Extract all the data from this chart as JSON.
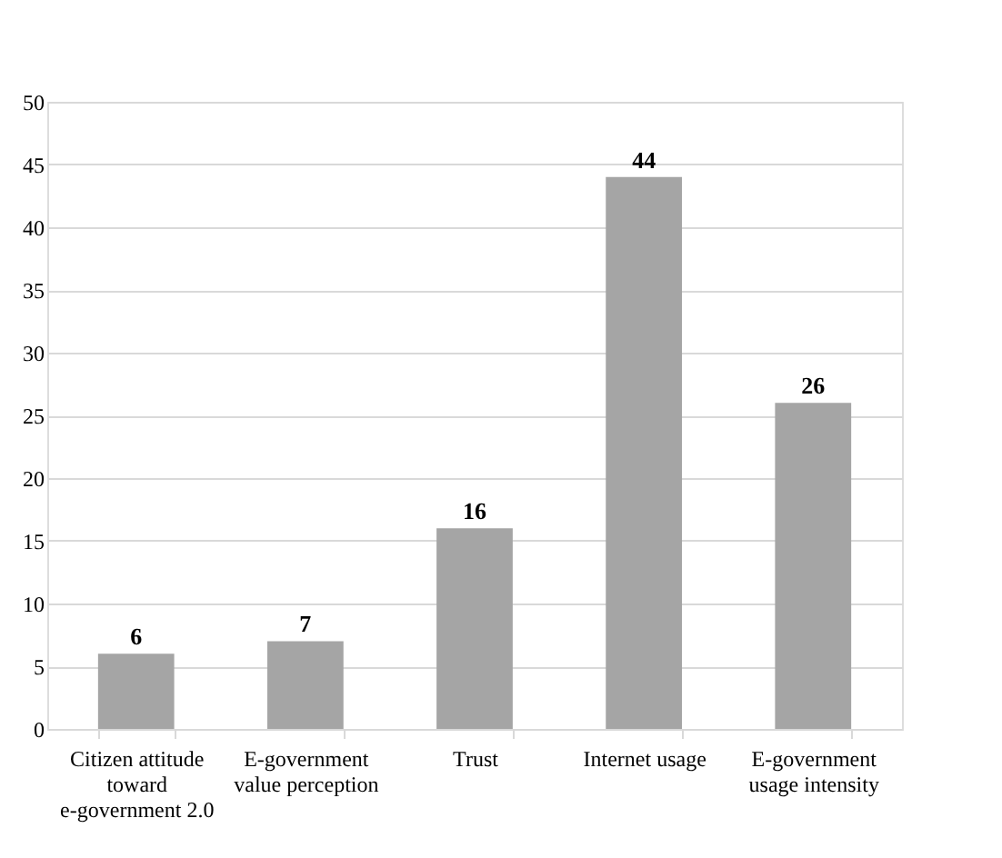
{
  "chart_data": {
    "type": "bar",
    "categories": [
      "Citizen attitude toward e-government 2.0",
      "E-government value perception",
      "Trust",
      "Internet usage",
      "E-government usage intensity"
    ],
    "values": [
      6,
      7,
      16,
      44,
      26
    ],
    "color": "#a5a5a5",
    "ylim": [
      0,
      50
    ],
    "yticks": [
      0,
      5,
      10,
      15,
      20,
      25,
      30,
      35,
      40,
      45,
      50
    ],
    "grid": "y",
    "data_labels": true
  }
}
